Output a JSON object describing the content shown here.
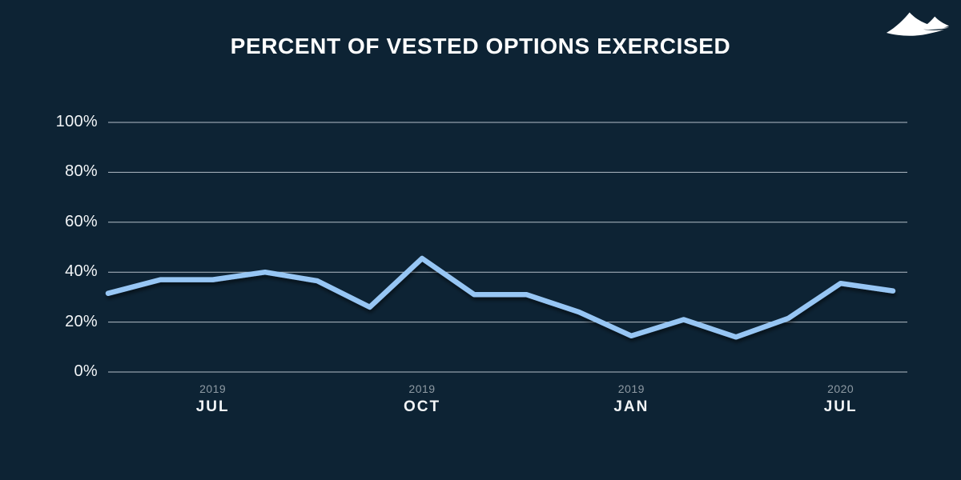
{
  "header": {
    "title": "PERCENT OF VESTED OPTIONS EXERCISED",
    "logo_icon": "two-mountains-logo"
  },
  "colors": {
    "background": "#0d2334",
    "line": "#97c6f4",
    "gridline": "#b3bec7",
    "title_text": "#ffffff",
    "axis_text": "#f2f5f7",
    "year_text": "#8e9aa3"
  },
  "chart_data": {
    "type": "line",
    "title": "PERCENT OF VESTED OPTIONS EXERCISED",
    "xlabel": "",
    "ylabel": "",
    "ylim": [
      0,
      100
    ],
    "grid": true,
    "legend": false,
    "y_ticks": [
      {
        "label": "100%",
        "value": 100
      },
      {
        "label": "80%",
        "value": 80
      },
      {
        "label": "60%",
        "value": 60
      },
      {
        "label": "40%",
        "value": 40
      },
      {
        "label": "20%",
        "value": 20
      },
      {
        "label": "0%",
        "value": 0
      }
    ],
    "series": [
      {
        "name": "percent of vested options exercised",
        "values": [
          31.5,
          37,
          37,
          40,
          36.5,
          26,
          45.5,
          31,
          31,
          24,
          14.5,
          21,
          14,
          21.5,
          35.5,
          32.5
        ]
      }
    ],
    "x_tick_labels": [
      {
        "index": 2,
        "year": "2019",
        "month": "JUL"
      },
      {
        "index": 6,
        "year": "2019",
        "month": "OCT"
      },
      {
        "index": 10,
        "year": "2019",
        "month": "JAN"
      },
      {
        "index": 14,
        "year": "2020",
        "month": "JUL"
      }
    ]
  }
}
